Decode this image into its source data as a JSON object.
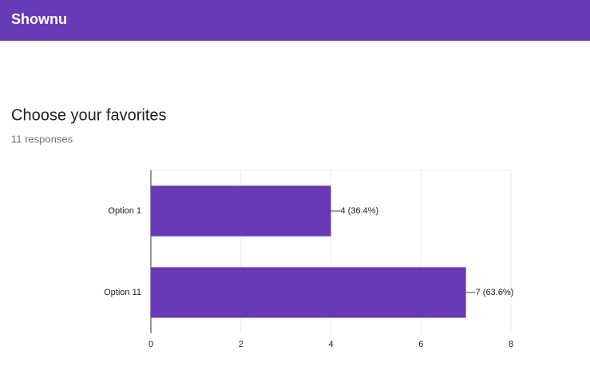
{
  "header": {
    "title": "Shownu"
  },
  "chart_data": {
    "type": "bar",
    "orientation": "horizontal",
    "title": "Choose your favorites",
    "subtitle": "11 responses",
    "categories": [
      "Option 1",
      "Option 11"
    ],
    "values": [
      4,
      7
    ],
    "value_labels": [
      "4 (36.4%)",
      "7 (63.6%)"
    ],
    "color": "#673ab7",
    "xlim": [
      0,
      8
    ],
    "xticks": [
      0,
      2,
      4,
      6,
      8
    ],
    "grid": true
  }
}
